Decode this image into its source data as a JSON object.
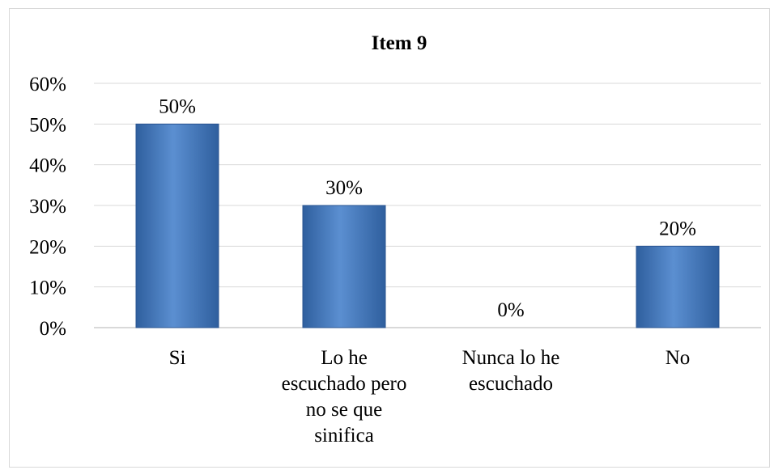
{
  "chart_data": {
    "type": "bar",
    "title": "Item 9",
    "categories": [
      "Si",
      "Lo he escuchado pero no se que sinifica",
      "Nunca lo he escuchado",
      "No"
    ],
    "category_lines": [
      [
        "Si"
      ],
      [
        "Lo he",
        "escuchado pero",
        "no se que",
        "sinifica"
      ],
      [
        "Nunca lo he",
        "escuchado"
      ],
      [
        "No"
      ]
    ],
    "values": [
      50,
      30,
      0,
      20
    ],
    "data_labels": [
      "50%",
      "30%",
      "0%",
      "20%"
    ],
    "ylim": [
      0,
      60
    ],
    "yticks": [
      0,
      10,
      20,
      30,
      40,
      50,
      60
    ],
    "ytick_labels": [
      "0%",
      "10%",
      "20%",
      "30%",
      "40%",
      "50%",
      "60%"
    ],
    "grid": true,
    "xlabel": "",
    "ylabel": "",
    "bar_color": "#4a7ebb"
  }
}
